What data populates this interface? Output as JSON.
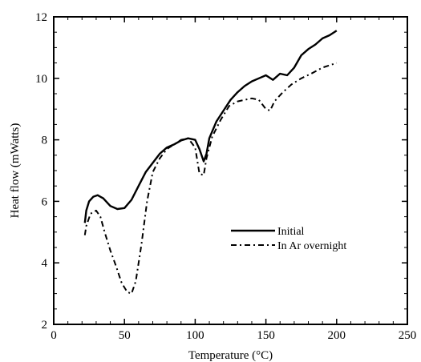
{
  "chart_data": {
    "type": "line",
    "title": "",
    "xlabel": "Temperature (°C)",
    "ylabel": "Heat flow (mWatts)",
    "xlim": [
      0,
      250
    ],
    "ylim": [
      2,
      12
    ],
    "x_ticks": [
      0,
      50,
      100,
      150,
      200,
      250
    ],
    "y_ticks": [
      2,
      4,
      6,
      8,
      10,
      12
    ],
    "grid": false,
    "legend_position": "center-right",
    "series": [
      {
        "name": "Initial",
        "style": "solid",
        "color": "#000000",
        "points": [
          [
            22,
            5.3
          ],
          [
            23,
            5.7
          ],
          [
            25,
            6.0
          ],
          [
            28,
            6.15
          ],
          [
            31,
            6.2
          ],
          [
            35,
            6.1
          ],
          [
            40,
            5.85
          ],
          [
            45,
            5.75
          ],
          [
            50,
            5.78
          ],
          [
            55,
            6.05
          ],
          [
            60,
            6.5
          ],
          [
            65,
            6.95
          ],
          [
            70,
            7.25
          ],
          [
            75,
            7.55
          ],
          [
            80,
            7.75
          ],
          [
            85,
            7.85
          ],
          [
            90,
            7.98
          ],
          [
            95,
            8.05
          ],
          [
            100,
            8.0
          ],
          [
            103,
            7.7
          ],
          [
            106,
            7.3
          ],
          [
            108,
            7.55
          ],
          [
            110,
            8.05
          ],
          [
            115,
            8.6
          ],
          [
            120,
            8.95
          ],
          [
            125,
            9.3
          ],
          [
            130,
            9.55
          ],
          [
            135,
            9.75
          ],
          [
            140,
            9.9
          ],
          [
            145,
            10.0
          ],
          [
            150,
            10.1
          ],
          [
            155,
            9.95
          ],
          [
            160,
            10.15
          ],
          [
            165,
            10.1
          ],
          [
            170,
            10.35
          ],
          [
            175,
            10.75
          ],
          [
            180,
            10.95
          ],
          [
            185,
            11.1
          ],
          [
            190,
            11.3
          ],
          [
            195,
            11.4
          ],
          [
            200,
            11.55
          ]
        ]
      },
      {
        "name": "In Ar overnight",
        "style": "dash-dot",
        "color": "#000000",
        "points": [
          [
            22,
            4.9
          ],
          [
            23,
            5.2
          ],
          [
            26,
            5.6
          ],
          [
            30,
            5.7
          ],
          [
            33,
            5.5
          ],
          [
            36,
            5.0
          ],
          [
            40,
            4.4
          ],
          [
            44,
            3.9
          ],
          [
            48,
            3.35
          ],
          [
            52,
            3.05
          ],
          [
            55,
            3.0
          ],
          [
            58,
            3.4
          ],
          [
            62,
            4.6
          ],
          [
            66,
            6.0
          ],
          [
            70,
            6.95
          ],
          [
            75,
            7.4
          ],
          [
            80,
            7.7
          ],
          [
            85,
            7.85
          ],
          [
            90,
            8.0
          ],
          [
            95,
            8.05
          ],
          [
            100,
            7.75
          ],
          [
            103,
            6.9
          ],
          [
            106,
            6.85
          ],
          [
            108,
            7.4
          ],
          [
            112,
            8.1
          ],
          [
            118,
            8.65
          ],
          [
            124,
            9.1
          ],
          [
            130,
            9.25
          ],
          [
            135,
            9.3
          ],
          [
            140,
            9.35
          ],
          [
            145,
            9.3
          ],
          [
            150,
            9.0
          ],
          [
            153,
            8.95
          ],
          [
            156,
            9.25
          ],
          [
            162,
            9.55
          ],
          [
            168,
            9.8
          ],
          [
            175,
            10.0
          ],
          [
            182,
            10.15
          ],
          [
            190,
            10.35
          ],
          [
            200,
            10.5
          ]
        ]
      }
    ]
  }
}
